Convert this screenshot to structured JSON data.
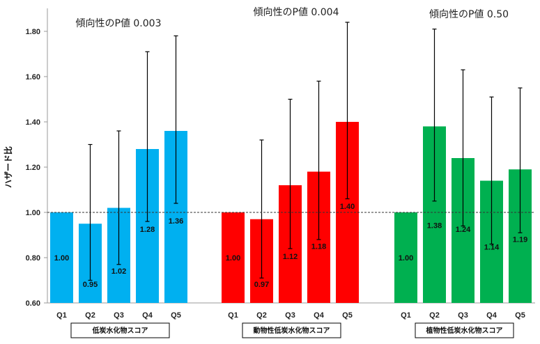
{
  "chart_data": {
    "type": "bar",
    "ylabel": "ハザード比",
    "ylim": [
      0.6,
      1.9
    ],
    "yticks": [
      "0.60",
      "0.80",
      "1.00",
      "1.20",
      "1.40",
      "1.60",
      "1.80"
    ],
    "reference_line": 1.0,
    "groups": [
      {
        "name": "低炭水化物スコア",
        "color": "#00b0f0",
        "p_trend": "傾向性のP値  0.003",
        "categories": [
          "Q1",
          "Q2",
          "Q3",
          "Q4",
          "Q5"
        ],
        "values": [
          1.0,
          0.95,
          1.02,
          1.28,
          1.36
        ],
        "labels": [
          "1.00",
          "0.95",
          "1.02",
          "1.28",
          "1.36"
        ],
        "ci_low": [
          null,
          0.7,
          0.77,
          0.96,
          1.04
        ],
        "ci_high": [
          null,
          1.3,
          1.36,
          1.71,
          1.78
        ]
      },
      {
        "name": "動物性低炭水化物スコア",
        "color": "#ff0000",
        "p_trend": "傾向性のP値  0.004",
        "categories": [
          "Q1",
          "Q2",
          "Q3",
          "Q4",
          "Q5"
        ],
        "values": [
          1.0,
          0.97,
          1.12,
          1.18,
          1.4
        ],
        "labels": [
          "1.00",
          "0.97",
          "1.12",
          "1.18",
          "1.40"
        ],
        "ci_low": [
          null,
          0.71,
          0.84,
          0.88,
          1.06
        ],
        "ci_high": [
          null,
          1.32,
          1.5,
          1.58,
          1.84
        ]
      },
      {
        "name": "植物性低炭水化物スコア",
        "color": "#00b050",
        "p_trend": "傾向性のP値  0.50",
        "categories": [
          "Q1",
          "Q2",
          "Q3",
          "Q4",
          "Q5"
        ],
        "values": [
          1.0,
          1.38,
          1.24,
          1.14,
          1.19
        ],
        "labels": [
          "1.00",
          "1.38",
          "1.24",
          "1.14",
          "1.19"
        ],
        "ci_low": [
          null,
          1.05,
          0.94,
          0.86,
          0.91
        ],
        "ci_high": [
          null,
          1.81,
          1.63,
          1.51,
          1.55
        ]
      }
    ]
  }
}
